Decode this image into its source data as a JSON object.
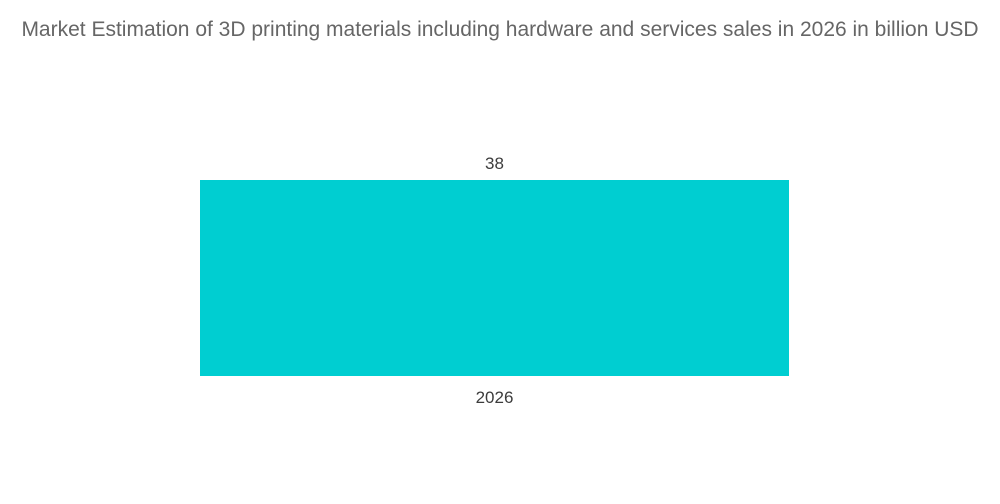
{
  "chart_data": {
    "type": "bar",
    "title": "Market Estimation of 3D printing materials including hardware and services sales in 2026 in billion USD",
    "categories": [
      "2026"
    ],
    "values": [
      38
    ],
    "xlabel": "",
    "ylabel": "",
    "ylim": [
      0,
      38
    ],
    "grid": false,
    "legend": "none",
    "colors": {
      "bar": "#00ced1",
      "label": "#3c3c3c",
      "title": "#666666"
    }
  }
}
